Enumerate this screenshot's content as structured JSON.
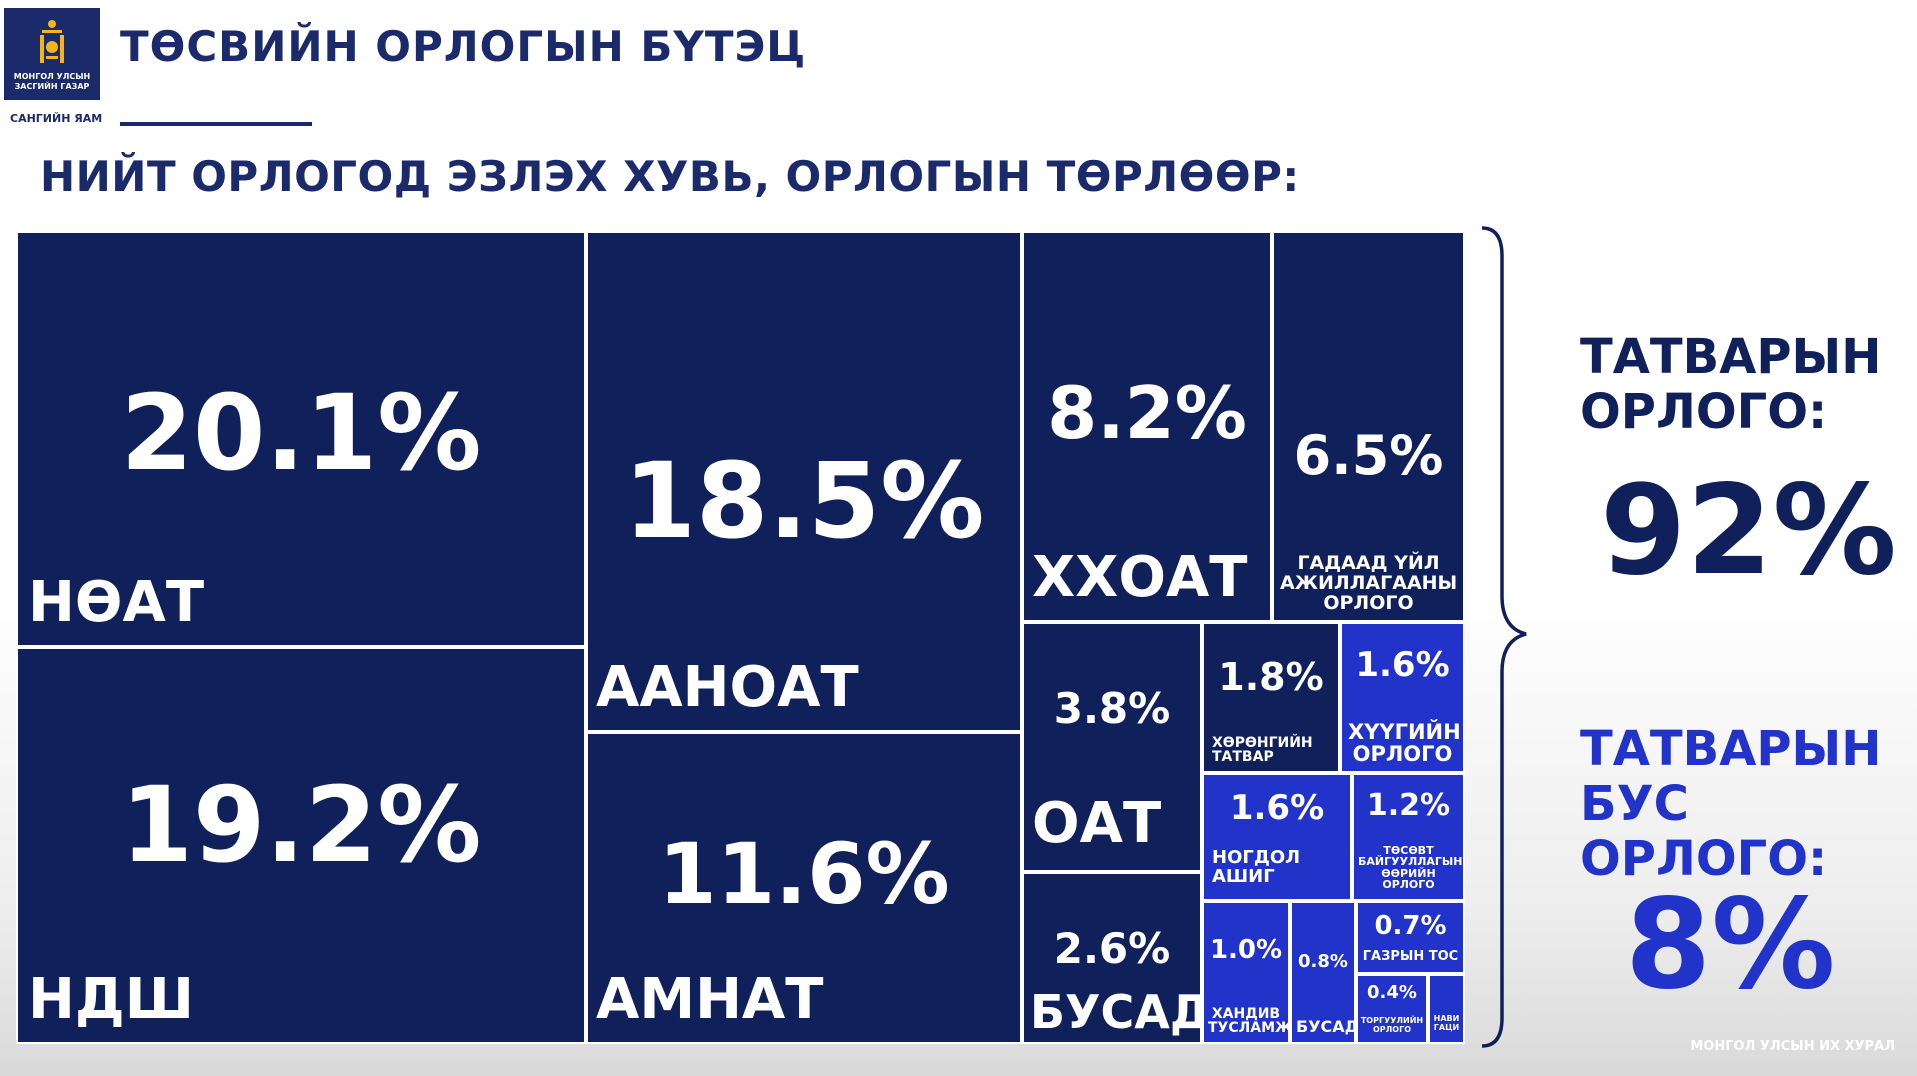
{
  "header": {
    "title": "ТӨСВИЙН ОРЛОГЫН БҮТЭЦ",
    "subtitle": "НИЙТ ОРЛОГОД ЭЗЛЭХ ХУВЬ, ОРЛОГЫН ТӨРЛӨӨР:",
    "logo_text_line1": "МОНГОЛ УЛСЫН",
    "logo_text_line2": "ЗАСГИЙН ГАЗАР",
    "ministry": "САНГИЙН ЯАМ"
  },
  "chart_data": {
    "type": "treemap",
    "unit": "%",
    "items": [
      {
        "label": "НӨАТ",
        "value": 20.1,
        "value_label": "20.1%",
        "group": "tax"
      },
      {
        "label": "НДШ",
        "value": 19.2,
        "value_label": "19.2%",
        "group": "tax"
      },
      {
        "label": "ААНОАТ",
        "value": 18.5,
        "value_label": "18.5%",
        "group": "tax"
      },
      {
        "label": "АМНАТ",
        "value": 11.6,
        "value_label": "11.6%",
        "group": "tax"
      },
      {
        "label": "ХХОАТ",
        "value": 8.2,
        "value_label": "8.2%",
        "group": "tax"
      },
      {
        "label": "ГАДААД ҮЙЛ АЖИЛЛАГААНЫ ОРЛОГО",
        "value": 6.5,
        "value_label": "6.5%",
        "group": "tax"
      },
      {
        "label": "ОАТ",
        "value": 3.8,
        "value_label": "3.8%",
        "group": "tax"
      },
      {
        "label": "БУСАД",
        "value": 2.6,
        "value_label": "2.6%",
        "group": "tax"
      },
      {
        "label": "ХӨРӨНГИЙН ТАТВАР",
        "value": 1.8,
        "value_label": "1.8%",
        "group": "tax"
      },
      {
        "label": "ХҮҮГИЙН ОРЛОГО",
        "value": 1.6,
        "value_label": "1.6%",
        "group": "non-tax"
      },
      {
        "label": "НОГДОЛ АШИГ",
        "value": 1.6,
        "value_label": "1.6%",
        "group": "non-tax"
      },
      {
        "label": "ТӨСӨВТ БАЙГУУЛЛАГЫН ӨӨРИЙН ОРЛОГО",
        "value": 1.2,
        "value_label": "1.2%",
        "group": "non-tax"
      },
      {
        "label": "ХАНДИВ ТУСЛАМЖ",
        "value": 1.0,
        "value_label": "1.0%",
        "group": "non-tax"
      },
      {
        "label": "БУСАД",
        "value": 0.8,
        "value_label": "0.8%",
        "group": "non-tax"
      },
      {
        "label": "ГАЗРЫН ТОС",
        "value": 0.7,
        "value_label": "0.7%",
        "group": "non-tax"
      },
      {
        "label": "ТОРГУУЛИЙН ОРЛОГО",
        "value": 0.4,
        "value_label": "0.4%",
        "group": "non-tax"
      },
      {
        "label": "НАВИ ГАЦИ",
        "value": null,
        "value_label": "",
        "group": "non-tax"
      }
    ],
    "colors": {
      "tax": "#10205a",
      "non-tax": "#2233c9"
    }
  },
  "summary": {
    "tax_label_line1": "ТАТВАРЫН",
    "tax_label_line2": "ОРЛОГО:",
    "tax_value": "92%",
    "nontax_label_line1": "ТАТВАРЫН",
    "nontax_label_line2": "БУС ОРЛОГО:",
    "nontax_value": "8%"
  },
  "footer": {
    "text": "МОНГОЛ УЛСЫН ИХ ХУРАЛ"
  }
}
